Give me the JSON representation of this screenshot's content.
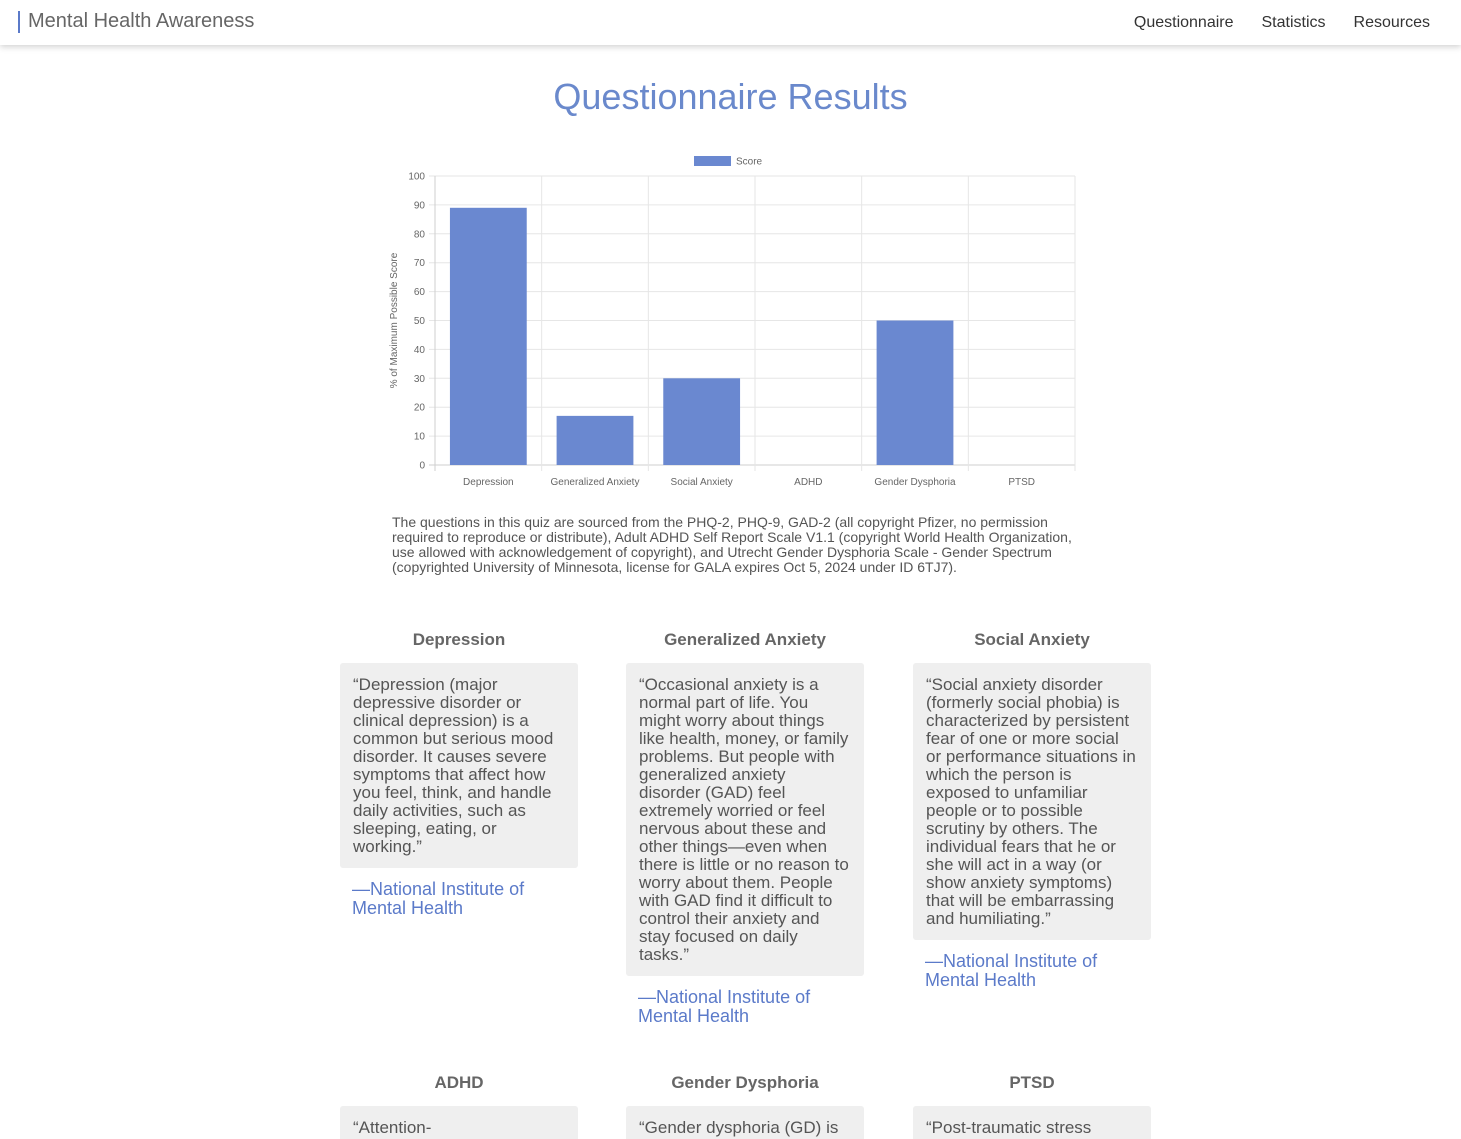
{
  "nav": {
    "brand": "Mental Health Awareness",
    "links": [
      "Questionnaire",
      "Statistics",
      "Resources"
    ]
  },
  "page": {
    "title": "Questionnaire Results"
  },
  "chart_data": {
    "type": "bar",
    "categories": [
      "Depression",
      "Generalized Anxiety",
      "Social Anxiety",
      "ADHD",
      "Gender Dysphoria",
      "PTSD"
    ],
    "series": [
      {
        "name": "Score",
        "values": [
          89,
          17,
          30,
          0,
          50,
          0
        ]
      }
    ],
    "title": "",
    "xlabel": "",
    "ylabel": "% of Maximum Possible Score",
    "ylim": [
      0,
      100
    ],
    "yticks": [
      0,
      10,
      20,
      30,
      40,
      50,
      60,
      70,
      80,
      90,
      100
    ],
    "grid": true,
    "legend": "top-center",
    "color": "#6a88d0"
  },
  "source_note": "The questions in this quiz are sourced from the PHQ-2, PHQ-9, GAD-2 (all copyright Pfizer, no permission required to reproduce or distribute), Adult ADHD Self Report Scale V1.1 (copyright World Health Organization, use allowed with acknowledgement of copyright), and Utrecht Gender Dysphoria Scale - Gender Spectrum (copyrighted University of Minnesota, license for GALA expires Oct 5, 2024 under ID 6TJ7).",
  "cards": [
    {
      "title": "Depression",
      "quote": "“Depression (major depressive disorder or clinical depression) is a common but serious mood disorder. It causes severe symptoms that affect how you feel, think, and handle daily activities, such as sleeping, eating, or working.”",
      "cite": "—National Institute of Mental Health"
    },
    {
      "title": "Generalized Anxiety",
      "quote": "“Occasional anxiety is a normal part of life. You might worry about things like health, money, or family problems. But people with generalized anxiety disorder (GAD) feel extremely worried or feel nervous about these and other things—even when there is little or no reason to worry about them. People with GAD find it difficult to control their anxiety and stay focused on daily tasks.”",
      "cite": "—National Institute of Mental Health"
    },
    {
      "title": "Social Anxiety",
      "quote": "“Social anxiety disorder (formerly social phobia) is characterized by persistent fear of one or more social or performance situations in which the person is exposed to unfamiliar people or to possible scrutiny by others. The individual fears that he or she will act in a way (or show anxiety symptoms) that will be embarrassing and humiliating.”",
      "cite": "—National Institute of Mental Health"
    },
    {
      "title": "ADHD",
      "quote": "“Attention-",
      "cite": ""
    },
    {
      "title": "Gender Dysphoria",
      "quote": "“Gender dysphoria (GD) is",
      "cite": ""
    },
    {
      "title": "PTSD",
      "quote": "“Post-traumatic stress",
      "cite": ""
    }
  ]
}
